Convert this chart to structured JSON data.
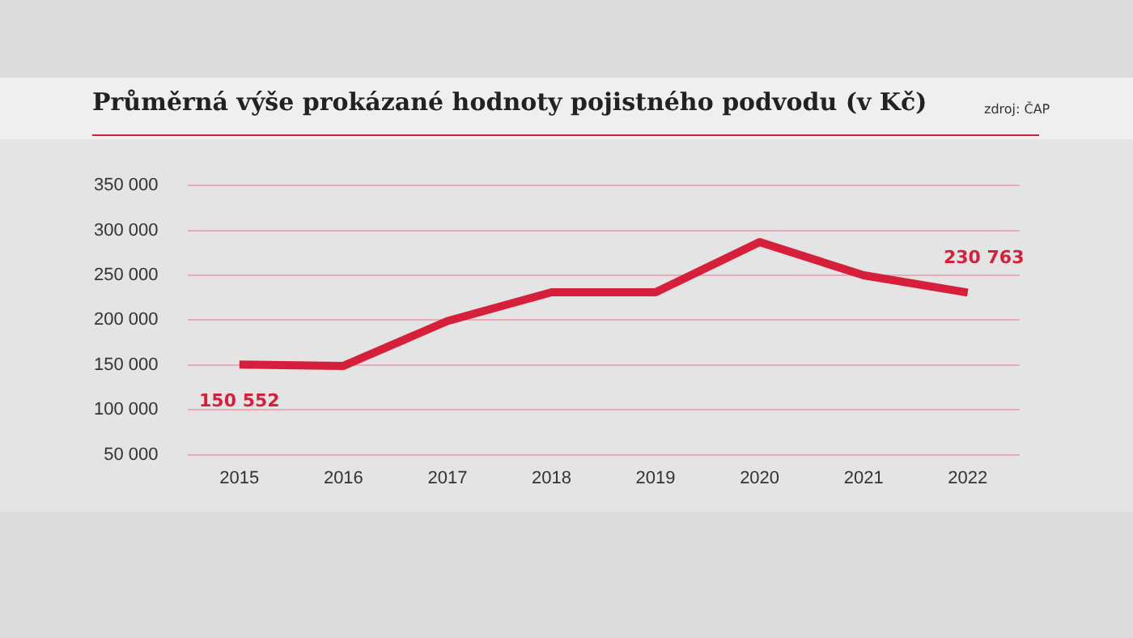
{
  "chart_data": {
    "type": "line",
    "title": "Průměrná výše prokázané hodnoty pojistného podvodu (v Kč)",
    "annotations": [
      "zdroj: ČAP"
    ],
    "categories": [
      "2015",
      "2016",
      "2017",
      "2018",
      "2019",
      "2020",
      "2021",
      "2022"
    ],
    "series": [
      {
        "color": "#d61f3a",
        "values": [
          150552,
          149000,
          199000,
          231000,
          231000,
          287000,
          250000,
          230763
        ],
        "value_labels": [
          "150 552",
          null,
          null,
          null,
          null,
          null,
          null,
          "230 763"
        ]
      }
    ],
    "ylim": [
      50000,
      350000
    ],
    "yticks": [
      {
        "value": 50000,
        "label": "50 000"
      },
      {
        "value": 100000,
        "label": "100 000"
      },
      {
        "value": 150000,
        "label": "150 000"
      },
      {
        "value": 200000,
        "label": "200 000"
      },
      {
        "value": 250000,
        "label": "250 000"
      },
      {
        "value": 300000,
        "label": "300 000"
      },
      {
        "value": 350000,
        "label": "350 000"
      }
    ],
    "grid": "y",
    "legend": false,
    "marker": "none",
    "line_style": "solid"
  }
}
